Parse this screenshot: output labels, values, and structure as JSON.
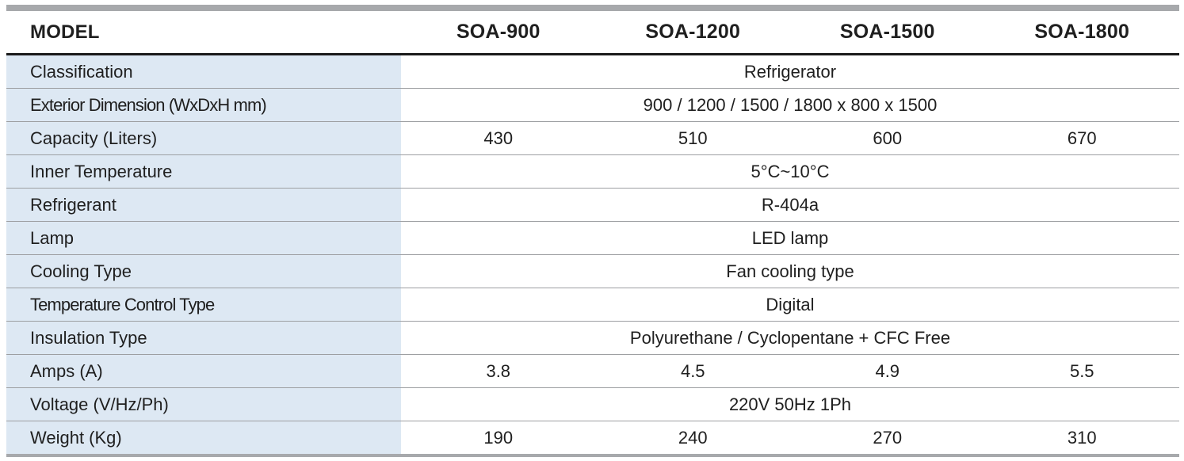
{
  "header": {
    "label": "MODEL",
    "models": [
      "SOA-900",
      "SOA-1200",
      "SOA-1500",
      "SOA-1800"
    ]
  },
  "rows": [
    {
      "label": "Classification",
      "span": true,
      "value": "Refrigerator"
    },
    {
      "label": "Exterior Dimension (WxDxH mm)",
      "span": true,
      "value": "900 / 1200 / 1500 / 1800 x 800 x 1500"
    },
    {
      "label": "Capacity (Liters)",
      "span": false,
      "values": [
        "430",
        "510",
        "600",
        "670"
      ]
    },
    {
      "label": "Inner Temperature",
      "span": true,
      "value": "5°C~10°C"
    },
    {
      "label": "Refrigerant",
      "span": true,
      "value": "R-404a"
    },
    {
      "label": "Lamp",
      "span": true,
      "value": "LED lamp"
    },
    {
      "label": "Cooling Type",
      "span": true,
      "value": "Fan cooling type"
    },
    {
      "label": "Temperature Control Type",
      "span": true,
      "value": "Digital"
    },
    {
      "label": "Insulation Type",
      "span": true,
      "value": "Polyurethane / Cyclopentane + CFC Free"
    },
    {
      "label": "Amps (A)",
      "span": false,
      "values": [
        "3.8",
        "4.5",
        "4.9",
        "5.5"
      ]
    },
    {
      "label": "Voltage (V/Hz/Ph)",
      "span": true,
      "value": "220V 50Hz 1Ph"
    },
    {
      "label": "Weight (Kg)",
      "span": false,
      "values": [
        "190",
        "240",
        "270",
        "310"
      ]
    }
  ],
  "colors": {
    "label_column_bg": "#dde8f3",
    "rule_gray": "#a7a9ac",
    "header_rule": "#1a1a1a"
  }
}
